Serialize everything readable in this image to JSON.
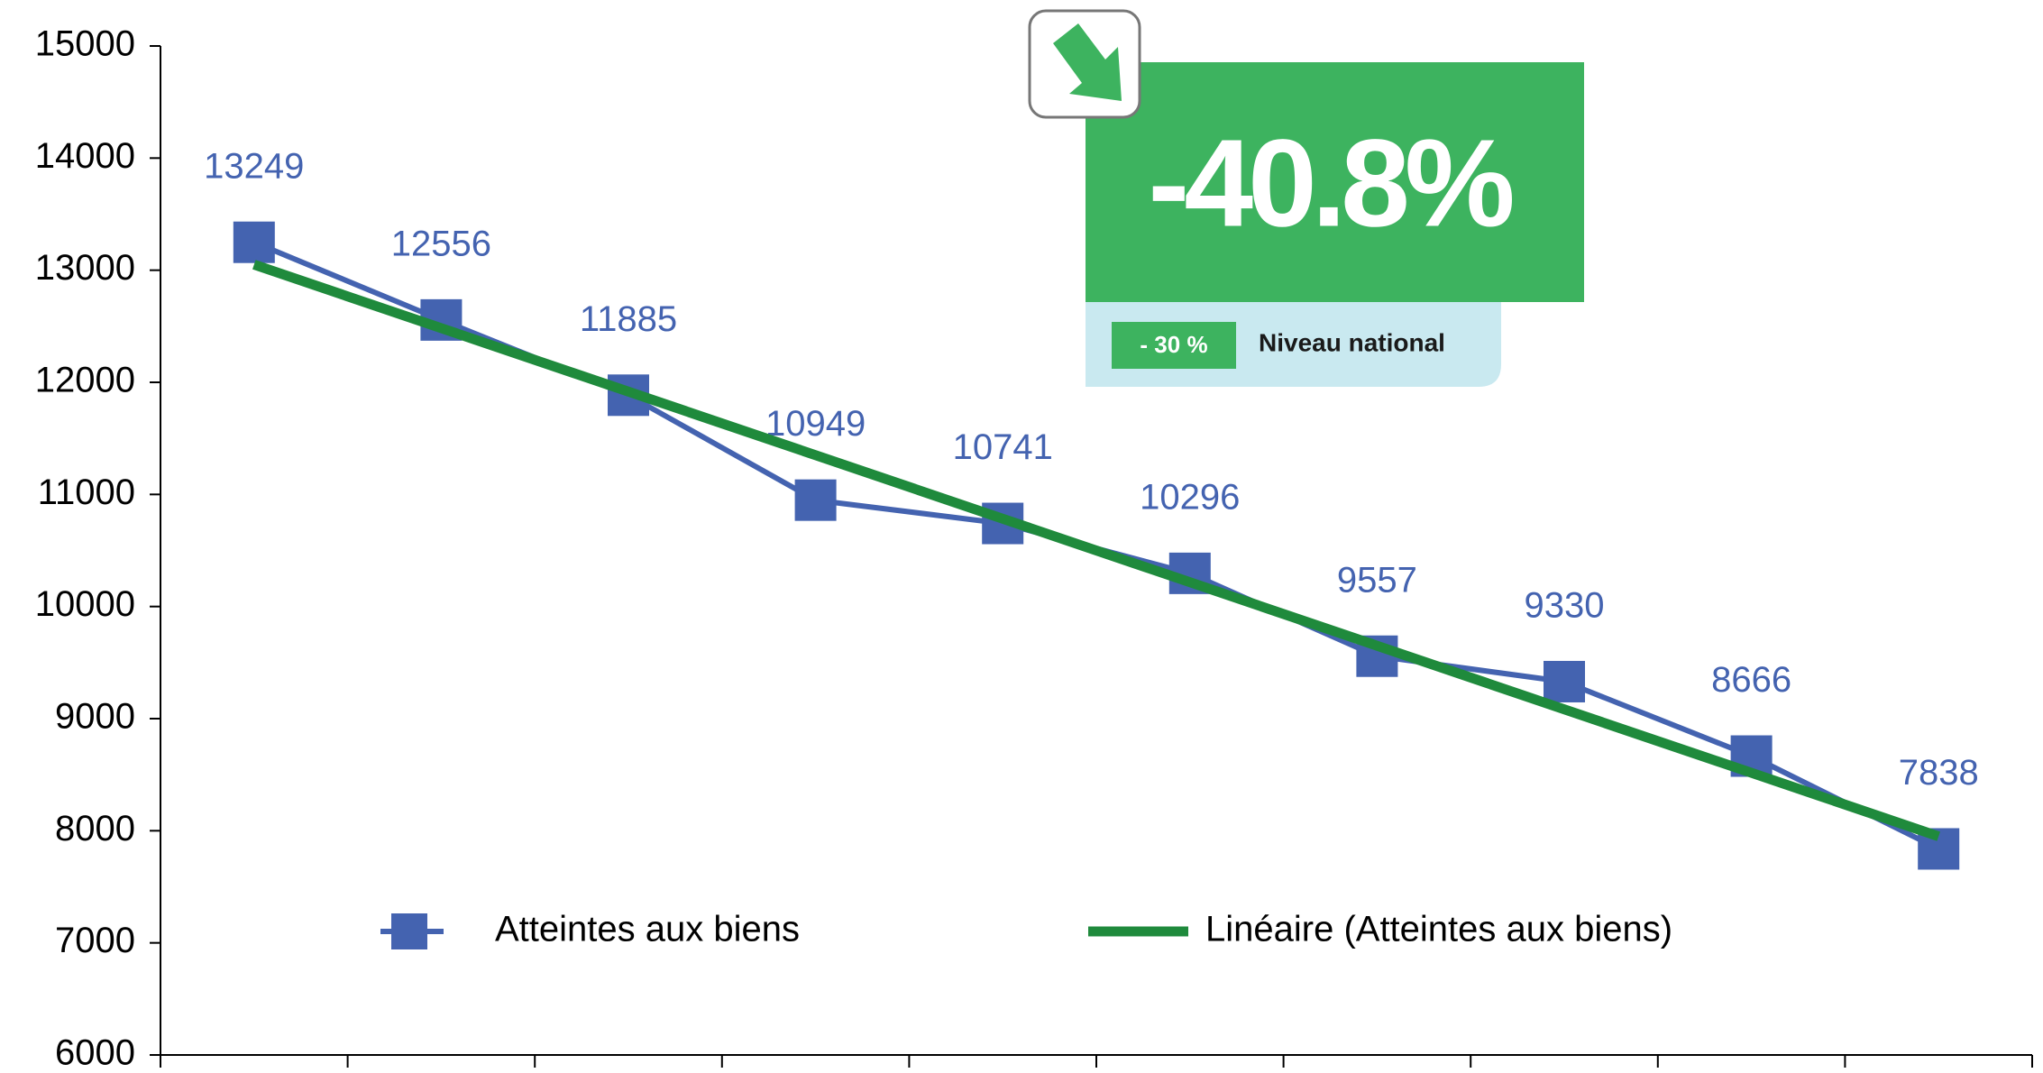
{
  "chart_data": {
    "type": "line",
    "categories": [
      null,
      null,
      null,
      null,
      null,
      null,
      null,
      null,
      null,
      null
    ],
    "series": [
      {
        "name": "Atteintes aux biens",
        "color": "#4463b0",
        "values": [
          13249,
          12556,
          11885,
          10949,
          10741,
          10296,
          9557,
          9330,
          8666,
          7838
        ]
      },
      {
        "name": "Linéaire (Atteintes aux biens)",
        "color": "#1f8a3c",
        "trend": true,
        "values": [
          13050,
          12483,
          11917,
          11350,
          10783,
          10217,
          9650,
          9083,
          8517,
          7950
        ]
      }
    ],
    "ylim": [
      6000,
      15000
    ],
    "yticks": [
      6000,
      7000,
      8000,
      9000,
      10000,
      11000,
      12000,
      13000,
      14000,
      15000
    ],
    "data_labels": true,
    "annotation": {
      "headline": "-40.8%",
      "national_value": "- 30 %",
      "national_label": "Niveau national"
    }
  }
}
